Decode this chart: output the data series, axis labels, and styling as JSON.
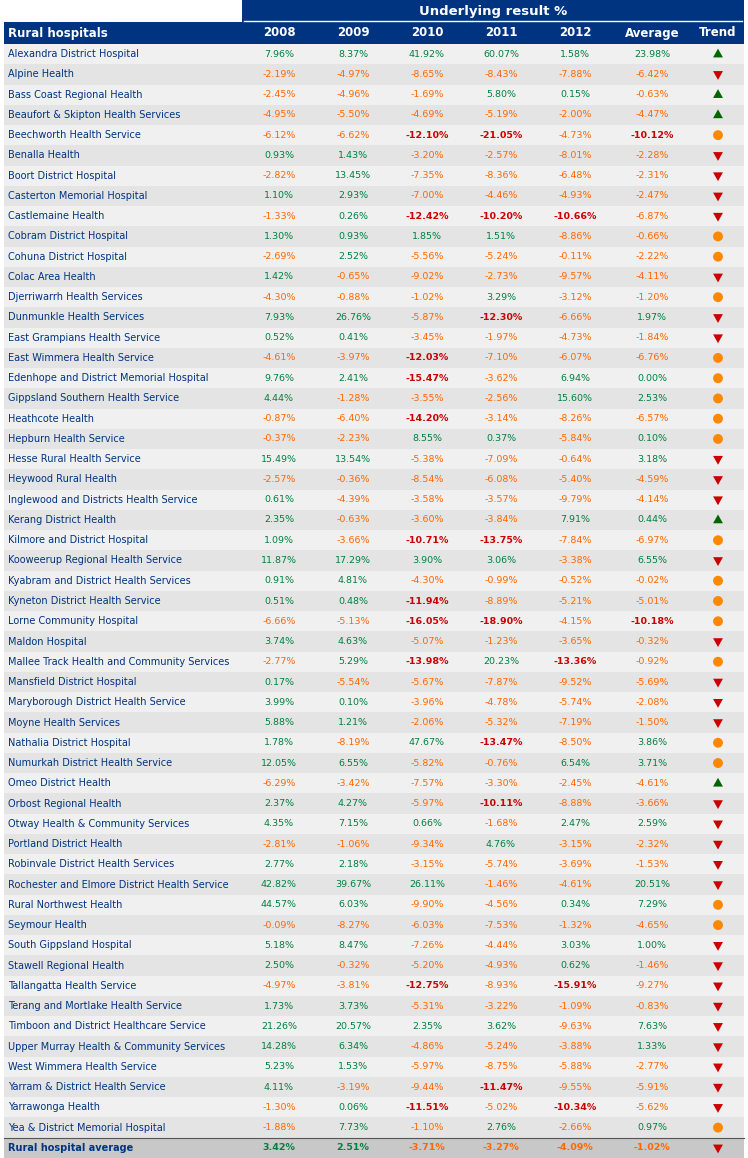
{
  "title": "Underlying result %",
  "col_header": [
    "2008",
    "2009",
    "2010",
    "2011",
    "2012",
    "Average",
    "Trend"
  ],
  "row_header": "Rural hospitals",
  "rows": [
    [
      "Alexandra District Hospital",
      "7.96%",
      "8.37%",
      "41.92%",
      "60.07%",
      "1.58%",
      "23.98%",
      "up_green"
    ],
    [
      "Alpine Health",
      "-2.19%",
      "-4.97%",
      "-8.65%",
      "-8.43%",
      "-7.88%",
      "-6.42%",
      "down_red"
    ],
    [
      "Bass Coast Regional Health",
      "-2.45%",
      "-4.96%",
      "-1.69%",
      "5.80%",
      "0.15%",
      "-0.63%",
      "up_green"
    ],
    [
      "Beaufort & Skipton Health Services",
      "-4.95%",
      "-5.50%",
      "-4.69%",
      "-5.19%",
      "-2.00%",
      "-4.47%",
      "up_green"
    ],
    [
      "Beechworth Health Service",
      "-6.12%",
      "-6.62%",
      "-12.10%",
      "-21.05%",
      "-4.73%",
      "-10.12%",
      "circle_orange"
    ],
    [
      "Benalla Health",
      "0.93%",
      "1.43%",
      "-3.20%",
      "-2.57%",
      "-8.01%",
      "-2.28%",
      "down_red"
    ],
    [
      "Boort District Hospital",
      "-2.82%",
      "13.45%",
      "-7.35%",
      "-8.36%",
      "-6.48%",
      "-2.31%",
      "down_red"
    ],
    [
      "Casterton Memorial Hospital",
      "1.10%",
      "2.93%",
      "-7.00%",
      "-4.46%",
      "-4.93%",
      "-2.47%",
      "down_red"
    ],
    [
      "Castlemaine Health",
      "-1.33%",
      "0.26%",
      "-12.42%",
      "-10.20%",
      "-10.66%",
      "-6.87%",
      "down_red"
    ],
    [
      "Cobram District Hospital",
      "1.30%",
      "0.93%",
      "1.85%",
      "1.51%",
      "-8.86%",
      "-0.66%",
      "circle_orange"
    ],
    [
      "Cohuna District Hospital",
      "-2.69%",
      "2.52%",
      "-5.56%",
      "-5.24%",
      "-0.11%",
      "-2.22%",
      "circle_orange"
    ],
    [
      "Colac Area Health",
      "1.42%",
      "-0.65%",
      "-9.02%",
      "-2.73%",
      "-9.57%",
      "-4.11%",
      "down_red"
    ],
    [
      "Djerriwarrh Health Services",
      "-4.30%",
      "-0.88%",
      "-1.02%",
      "3.29%",
      "-3.12%",
      "-1.20%",
      "circle_orange"
    ],
    [
      "Dunmunkle Health Services",
      "7.93%",
      "26.76%",
      "-5.87%",
      "-12.30%",
      "-6.66%",
      "1.97%",
      "down_red"
    ],
    [
      "East Grampians Health Service",
      "0.52%",
      "0.41%",
      "-3.45%",
      "-1.97%",
      "-4.73%",
      "-1.84%",
      "down_red"
    ],
    [
      "East Wimmera Health Service",
      "-4.61%",
      "-3.97%",
      "-12.03%",
      "-7.10%",
      "-6.07%",
      "-6.76%",
      "circle_orange"
    ],
    [
      "Edenhope and District Memorial Hospital",
      "9.76%",
      "2.41%",
      "-15.47%",
      "-3.62%",
      "6.94%",
      "0.00%",
      "circle_orange"
    ],
    [
      "Gippsland Southern Health Service",
      "4.44%",
      "-1.28%",
      "-3.55%",
      "-2.56%",
      "15.60%",
      "2.53%",
      "circle_orange"
    ],
    [
      "Heathcote Health",
      "-0.87%",
      "-6.40%",
      "-14.20%",
      "-3.14%",
      "-8.26%",
      "-6.57%",
      "circle_orange"
    ],
    [
      "Hepburn Health Service",
      "-0.37%",
      "-2.23%",
      "8.55%",
      "0.37%",
      "-5.84%",
      "0.10%",
      "circle_orange"
    ],
    [
      "Hesse Rural Health Service",
      "15.49%",
      "13.54%",
      "-5.38%",
      "-7.09%",
      "-0.64%",
      "3.18%",
      "down_red"
    ],
    [
      "Heywood Rural Health",
      "-2.57%",
      "-0.36%",
      "-8.54%",
      "-6.08%",
      "-5.40%",
      "-4.59%",
      "down_red"
    ],
    [
      "Inglewood and Districts Health Service",
      "0.61%",
      "-4.39%",
      "-3.58%",
      "-3.57%",
      "-9.79%",
      "-4.14%",
      "down_red"
    ],
    [
      "Kerang District Health",
      "2.35%",
      "-0.63%",
      "-3.60%",
      "-3.84%",
      "7.91%",
      "0.44%",
      "up_green"
    ],
    [
      "Kilmore and District Hospital",
      "1.09%",
      "-3.66%",
      "-10.71%",
      "-13.75%",
      "-7.84%",
      "-6.97%",
      "circle_orange"
    ],
    [
      "Kooweerup Regional Health Service",
      "11.87%",
      "17.29%",
      "3.90%",
      "3.06%",
      "-3.38%",
      "6.55%",
      "down_red"
    ],
    [
      "Kyabram and District Health Services",
      "0.91%",
      "4.81%",
      "-4.30%",
      "-0.99%",
      "-0.52%",
      "-0.02%",
      "circle_orange"
    ],
    [
      "Kyneton District Health Service",
      "0.51%",
      "0.48%",
      "-11.94%",
      "-8.89%",
      "-5.21%",
      "-5.01%",
      "circle_orange"
    ],
    [
      "Lorne Community Hospital",
      "-6.66%",
      "-5.13%",
      "-16.05%",
      "-18.90%",
      "-4.15%",
      "-10.18%",
      "circle_orange"
    ],
    [
      "Maldon Hospital",
      "3.74%",
      "4.63%",
      "-5.07%",
      "-1.23%",
      "-3.65%",
      "-0.32%",
      "down_red"
    ],
    [
      "Mallee Track Health and Community Services",
      "-2.77%",
      "5.29%",
      "-13.98%",
      "20.23%",
      "-13.36%",
      "-0.92%",
      "circle_orange"
    ],
    [
      "Mansfield District Hospital",
      "0.17%",
      "-5.54%",
      "-5.67%",
      "-7.87%",
      "-9.52%",
      "-5.69%",
      "down_red"
    ],
    [
      "Maryborough District Health Service",
      "3.99%",
      "0.10%",
      "-3.96%",
      "-4.78%",
      "-5.74%",
      "-2.08%",
      "down_red"
    ],
    [
      "Moyne Health Services",
      "5.88%",
      "1.21%",
      "-2.06%",
      "-5.32%",
      "-7.19%",
      "-1.50%",
      "down_red"
    ],
    [
      "Nathalia District Hospital",
      "1.78%",
      "-8.19%",
      "47.67%",
      "-13.47%",
      "-8.50%",
      "3.86%",
      "circle_orange"
    ],
    [
      "Numurkah District Health Service",
      "12.05%",
      "6.55%",
      "-5.82%",
      "-0.76%",
      "6.54%",
      "3.71%",
      "circle_orange"
    ],
    [
      "Omeo District Health",
      "-6.29%",
      "-3.42%",
      "-7.57%",
      "-3.30%",
      "-2.45%",
      "-4.61%",
      "up_green"
    ],
    [
      "Orbost Regional Health",
      "2.37%",
      "4.27%",
      "-5.97%",
      "-10.11%",
      "-8.88%",
      "-3.66%",
      "down_red"
    ],
    [
      "Otway Health & Community Services",
      "4.35%",
      "7.15%",
      "0.66%",
      "-1.68%",
      "2.47%",
      "2.59%",
      "down_red"
    ],
    [
      "Portland District Health",
      "-2.81%",
      "-1.06%",
      "-9.34%",
      "4.76%",
      "-3.15%",
      "-2.32%",
      "down_red"
    ],
    [
      "Robinvale District Health Services",
      "2.77%",
      "2.18%",
      "-3.15%",
      "-5.74%",
      "-3.69%",
      "-1.53%",
      "down_red"
    ],
    [
      "Rochester and Elmore District Health Service",
      "42.82%",
      "39.67%",
      "26.11%",
      "-1.46%",
      "-4.61%",
      "20.51%",
      "down_red"
    ],
    [
      "Rural Northwest Health",
      "44.57%",
      "6.03%",
      "-9.90%",
      "-4.56%",
      "0.34%",
      "7.29%",
      "circle_orange"
    ],
    [
      "Seymour Health",
      "-0.09%",
      "-8.27%",
      "-6.03%",
      "-7.53%",
      "-1.32%",
      "-4.65%",
      "circle_orange"
    ],
    [
      "South Gippsland Hospital",
      "5.18%",
      "8.47%",
      "-7.26%",
      "-4.44%",
      "3.03%",
      "1.00%",
      "down_red"
    ],
    [
      "Stawell Regional Health",
      "2.50%",
      "-0.32%",
      "-5.20%",
      "-4.93%",
      "0.62%",
      "-1.46%",
      "down_red"
    ],
    [
      "Tallangatta Health Service",
      "-4.97%",
      "-3.81%",
      "-12.75%",
      "-8.93%",
      "-15.91%",
      "-9.27%",
      "down_red"
    ],
    [
      "Terang and Mortlake Health Service",
      "1.73%",
      "3.73%",
      "-5.31%",
      "-3.22%",
      "-1.09%",
      "-0.83%",
      "down_red"
    ],
    [
      "Timboon and District Healthcare Service",
      "21.26%",
      "20.57%",
      "2.35%",
      "3.62%",
      "-9.63%",
      "7.63%",
      "down_red"
    ],
    [
      "Upper Murray Health & Community Services",
      "14.28%",
      "6.34%",
      "-4.86%",
      "-5.24%",
      "-3.88%",
      "1.33%",
      "down_red"
    ],
    [
      "West Wimmera Health Service",
      "5.23%",
      "1.53%",
      "-5.97%",
      "-8.75%",
      "-5.88%",
      "-2.77%",
      "down_red"
    ],
    [
      "Yarram & District Health Service",
      "4.11%",
      "-3.19%",
      "-9.44%",
      "-11.47%",
      "-9.55%",
      "-5.91%",
      "down_red"
    ],
    [
      "Yarrawonga Health",
      "-1.30%",
      "0.06%",
      "-11.51%",
      "-5.02%",
      "-10.34%",
      "-5.62%",
      "down_red"
    ],
    [
      "Yea & District Memorial Hospital",
      "-1.88%",
      "7.73%",
      "-1.10%",
      "2.76%",
      "-2.66%",
      "0.97%",
      "circle_orange"
    ],
    [
      "Rural hospital average",
      "3.42%",
      "2.51%",
      "-3.71%",
      "-3.27%",
      "-4.09%",
      "-1.02%",
      "down_red"
    ]
  ],
  "header_bg": "#003380",
  "header_text": "#ffffff",
  "alt_row_bg": "#e4e4e4",
  "normal_row_bg": "#f0f0f0",
  "footer_row_bg": "#c8c8c8",
  "positive_color": "#008040",
  "negative_color": "#ff6600",
  "red_highlight_color": "#cc0000",
  "label_color": "#003380",
  "up_arrow_color": "#006600",
  "down_arrow_color": "#cc0000",
  "circle_color": "#ff8800"
}
